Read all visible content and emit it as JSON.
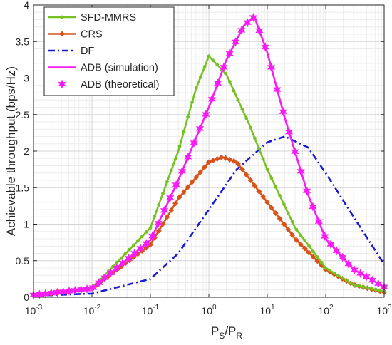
{
  "chart_data": {
    "type": "line",
    "xscale": "log",
    "xlim": [
      0.001,
      1000
    ],
    "ylim": [
      0,
      4
    ],
    "grid": true,
    "minor_grid": true,
    "legend_position": "top-left",
    "xlabel": {
      "main_1": "P",
      "sub_1": "S",
      "main_2": "/P",
      "sub_2": "R"
    },
    "ylabel": "Achievable throughput (bps/Hz)",
    "xticks": [
      {
        "value": 0.001,
        "base": "10",
        "exp": "-3"
      },
      {
        "value": 0.01,
        "base": "10",
        "exp": "-2"
      },
      {
        "value": 0.1,
        "base": "10",
        "exp": "-1"
      },
      {
        "value": 1,
        "base": "10",
        "exp": "0"
      },
      {
        "value": 10,
        "base": "10",
        "exp": "1"
      },
      {
        "value": 100,
        "base": "10",
        "exp": "2"
      },
      {
        "value": 1000,
        "base": "10",
        "exp": "3"
      }
    ],
    "yticks": [
      {
        "value": 0,
        "label": "0"
      },
      {
        "value": 0.5,
        "label": "0.5"
      },
      {
        "value": 1,
        "label": "1"
      },
      {
        "value": 1.5,
        "label": "1.5"
      },
      {
        "value": 2,
        "label": "2"
      },
      {
        "value": 2.5,
        "label": "2.5"
      },
      {
        "value": 3,
        "label": "3"
      },
      {
        "value": 3.5,
        "label": "3.5"
      },
      {
        "value": 4,
        "label": "4"
      }
    ],
    "series": [
      {
        "name": "SFD-MMRS",
        "color": "#77c122",
        "line": "solid",
        "marker": "dot",
        "x": [
          0.001,
          0.01,
          0.1,
          0.3,
          0.6,
          1,
          2,
          5,
          10,
          30,
          100,
          300,
          1000
        ],
        "y": [
          0.03,
          0.12,
          0.95,
          2.0,
          2.85,
          3.3,
          3.05,
          2.35,
          1.75,
          0.95,
          0.4,
          0.17,
          0.08
        ]
      },
      {
        "name": "CRS",
        "color": "#d8531a",
        "line": "solid",
        "marker": "diamond",
        "x": [
          0.001,
          0.01,
          0.1,
          0.3,
          1,
          1.7,
          3,
          10,
          30,
          100,
          300,
          1000
        ],
        "y": [
          0.03,
          0.12,
          0.72,
          1.35,
          1.85,
          1.92,
          1.85,
          1.3,
          0.8,
          0.38,
          0.17,
          0.07
        ]
      },
      {
        "name": "DF",
        "color": "#1a1ad4",
        "line": "dashdot",
        "marker": "none",
        "x": [
          0.001,
          0.01,
          0.1,
          0.3,
          1,
          3,
          10,
          20,
          50,
          100,
          300,
          1000
        ],
        "y": [
          0.02,
          0.05,
          0.25,
          0.6,
          1.2,
          1.75,
          2.12,
          2.2,
          2.05,
          1.7,
          1.1,
          0.45
        ]
      },
      {
        "name": "ADB (simulation)",
        "color": "#f81cf4",
        "line": "solid",
        "marker": "none",
        "x": [
          0.001,
          0.01,
          0.1,
          0.3,
          1,
          2,
          4,
          6,
          10,
          20,
          50,
          100,
          300,
          1000
        ],
        "y": [
          0.03,
          0.12,
          0.78,
          1.6,
          2.6,
          3.25,
          3.72,
          3.84,
          3.35,
          2.45,
          1.4,
          0.8,
          0.38,
          0.14
        ]
      },
      {
        "name": "ADB (theoretical)",
        "color": "#f81cf4",
        "line": "none",
        "marker": "hexagram",
        "x": [
          0.001,
          0.01,
          0.1,
          0.3,
          1,
          2,
          4,
          6,
          10,
          20,
          50,
          100,
          300,
          1000
        ],
        "y": [
          0.03,
          0.12,
          0.78,
          1.6,
          2.6,
          3.25,
          3.72,
          3.84,
          3.35,
          2.45,
          1.4,
          0.8,
          0.38,
          0.14
        ]
      }
    ]
  }
}
